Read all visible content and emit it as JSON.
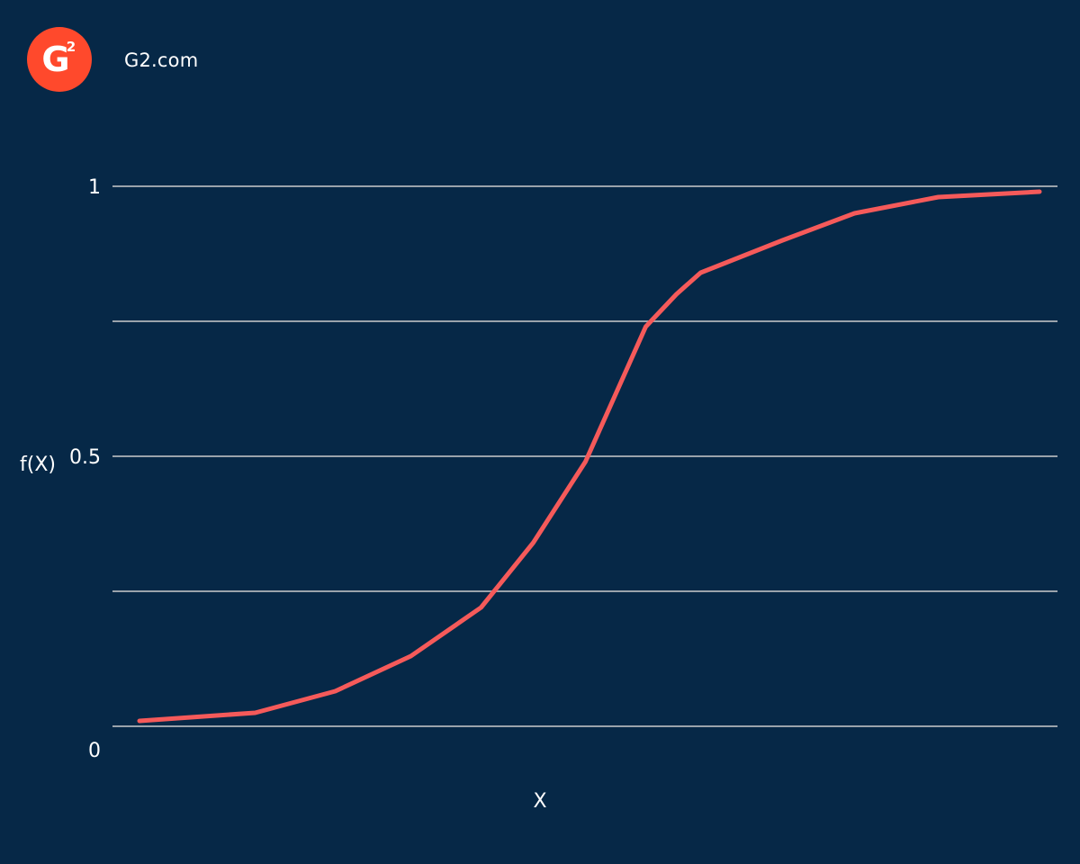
{
  "brand": {
    "logo_icon": "g2-logo-icon",
    "logo_text": "G",
    "logo_superscript": "2",
    "site": "G2.com",
    "logo_color": "#ff492c"
  },
  "colors": {
    "background": "#062847",
    "curve": "#f55a5a",
    "gridline": "#9aa3ab",
    "text": "#ffffff"
  },
  "chart_data": {
    "type": "line",
    "xlabel": "X",
    "ylabel": "f(X)",
    "ylim": [
      0,
      1
    ],
    "xlim": [
      0,
      1
    ],
    "y_ticks": [
      0,
      0.25,
      0.5,
      0.75,
      1
    ],
    "y_tick_labels": [
      "0",
      "",
      "0.5",
      "",
      "1"
    ],
    "grid": true,
    "legend": "none",
    "series": [
      {
        "x": [
          0.0,
          0.1285,
          0.2175,
          0.3015,
          0.3795,
          0.4375,
          0.4955,
          0.5625,
          0.5965,
          0.6235,
          0.7145,
          0.7945,
          0.8875,
          1.0
        ],
        "y": [
          0.01,
          0.025,
          0.065,
          0.13,
          0.22,
          0.34,
          0.49,
          0.74,
          0.8,
          0.84,
          0.9,
          0.95,
          0.98,
          0.99
        ]
      }
    ]
  }
}
